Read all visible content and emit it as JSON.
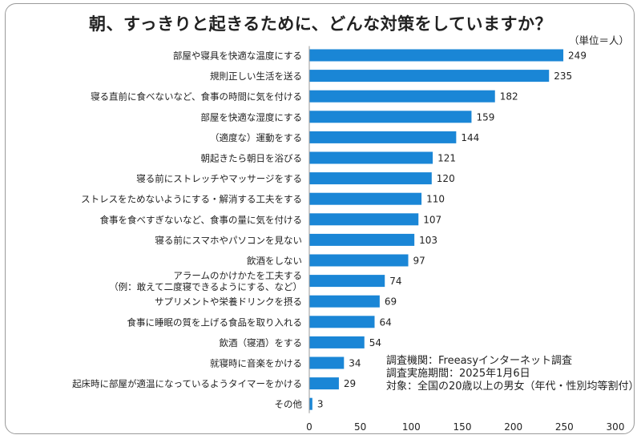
{
  "chart_data": {
    "type": "bar",
    "orientation": "horizontal",
    "title": "朝、すっきりと起きるために、どんな対策をしていますか？",
    "unit_label": "（単位＝人）",
    "bar_color": "#1a86d6",
    "categories": [
      [
        "部屋や寝具を快適な温度にする"
      ],
      [
        "規則正しい生活を送る"
      ],
      [
        "寝る直前に食べないなど、食事の時間に気を付ける"
      ],
      [
        "部屋を快適な湿度にする"
      ],
      [
        "（適度な）運動をする"
      ],
      [
        "朝起きたら朝日を浴びる"
      ],
      [
        "寝る前にストレッチやマッサージをする"
      ],
      [
        "ストレスをためないようにする・解消する工夫をする"
      ],
      [
        "食事を食べすぎないなど、食事の量に気を付ける"
      ],
      [
        "寝る前にスマホやパソコンを見ない"
      ],
      [
        "飲酒をしない"
      ],
      [
        "アラームのかけかたを工夫する",
        "（例：敢えて二度寝できるようにする、など）"
      ],
      [
        "サプリメントや栄養ドリンクを摂る"
      ],
      [
        "食事に睡眠の質を上げる食品を取り入れる"
      ],
      [
        "飲酒（寝酒）をする"
      ],
      [
        "就寝時に音楽をかける"
      ],
      [
        "起床時に部屋が適温になっているようタイマーをかける"
      ],
      [
        "その他"
      ]
    ],
    "values": [
      249,
      235,
      182,
      159,
      144,
      121,
      120,
      110,
      107,
      103,
      97,
      74,
      69,
      64,
      54,
      34,
      29,
      3
    ],
    "xlim": [
      0,
      300
    ],
    "xticks": [
      0,
      50,
      100,
      150,
      200,
      250,
      300
    ],
    "xlabel": "",
    "ylabel": "",
    "grid": false
  },
  "notes": [
    "調査機関：Freeasyインターネット調査",
    "調査実施期間：2025年1月6日",
    "対象：全国の20歳以上の男女（年代・性別均等割付）"
  ]
}
